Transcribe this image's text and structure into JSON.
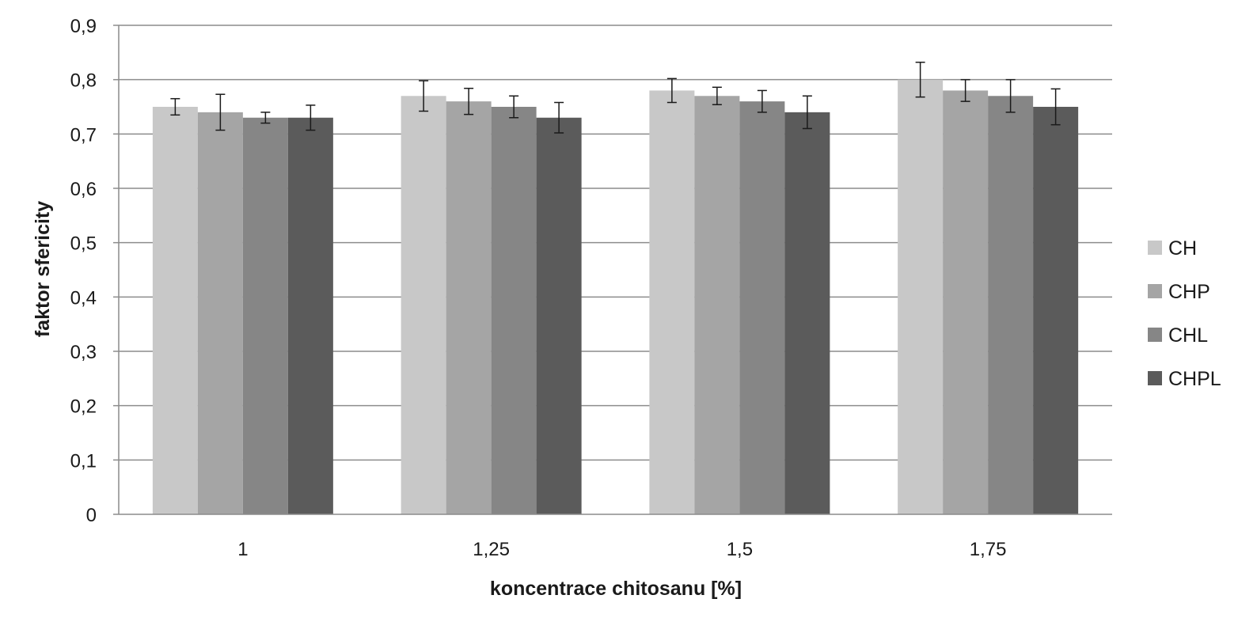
{
  "chart_data": {
    "type": "bar",
    "title": "",
    "xlabel": "koncentrace chitosanu [%]",
    "ylabel": "faktor sfericity",
    "categories": [
      "1",
      "1,25",
      "1,5",
      "1,75"
    ],
    "ylim": [
      0,
      0.9
    ],
    "yticks": [
      {
        "value": 0,
        "label": "0"
      },
      {
        "value": 0.1,
        "label": "0,1"
      },
      {
        "value": 0.2,
        "label": "0,2"
      },
      {
        "value": 0.3,
        "label": "0,3"
      },
      {
        "value": 0.4,
        "label": "0,4"
      },
      {
        "value": 0.5,
        "label": "0,5"
      },
      {
        "value": 0.6,
        "label": "0,6"
      },
      {
        "value": 0.7,
        "label": "0,7"
      },
      {
        "value": 0.8,
        "label": "0,8"
      },
      {
        "value": 0.9,
        "label": "0,9"
      }
    ],
    "grid": true,
    "legend_position": "right",
    "series": [
      {
        "name": "CH",
        "color": "#c8c8c8",
        "values": [
          0.75,
          0.77,
          0.78,
          0.8
        ],
        "errors": [
          0.015,
          0.028,
          0.022,
          0.032
        ]
      },
      {
        "name": "CHP",
        "color": "#a5a5a5",
        "values": [
          0.74,
          0.76,
          0.77,
          0.78
        ],
        "errors": [
          0.033,
          0.024,
          0.016,
          0.02
        ]
      },
      {
        "name": "CHL",
        "color": "#868686",
        "values": [
          0.73,
          0.75,
          0.76,
          0.77
        ],
        "errors": [
          0.01,
          0.02,
          0.02,
          0.03
        ]
      },
      {
        "name": "CHPL",
        "color": "#5b5b5b",
        "values": [
          0.73,
          0.73,
          0.74,
          0.75
        ],
        "errors": [
          0.023,
          0.028,
          0.03,
          0.033
        ]
      }
    ]
  }
}
